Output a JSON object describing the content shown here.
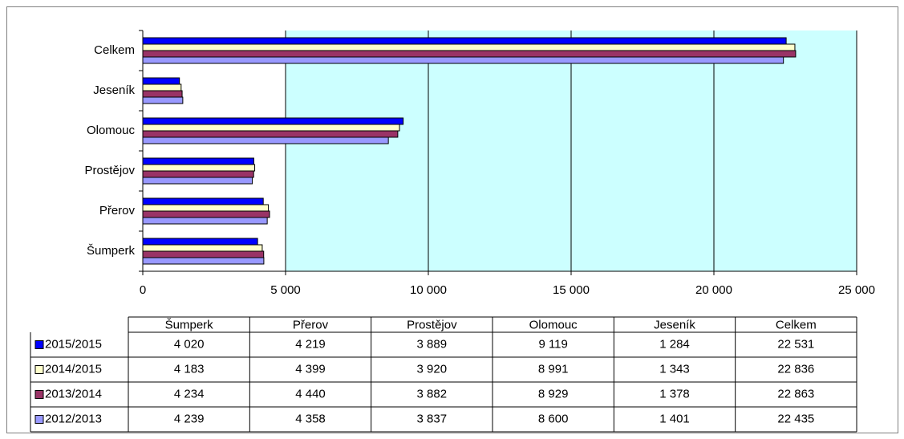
{
  "chart_data": {
    "type": "bar",
    "orientation": "horizontal",
    "categories": [
      "Šumperk",
      "Přerov",
      "Prostějov",
      "Olomouc",
      "Jeseník",
      "Celkem"
    ],
    "series": [
      {
        "name": "2015/2015",
        "color": "#0000ff",
        "values": [
          4020,
          4219,
          3889,
          9119,
          1284,
          22531
        ],
        "value_labels": [
          "4 020",
          "4 219",
          "3 889",
          "9 119",
          "1 284",
          "22 531"
        ]
      },
      {
        "name": "2014/2015",
        "color": "#ffffcc",
        "values": [
          4183,
          4399,
          3920,
          8991,
          1343,
          22836
        ],
        "value_labels": [
          "4 183",
          "4 399",
          "3 920",
          "8 991",
          "1 343",
          "22 836"
        ]
      },
      {
        "name": "2013/2014",
        "color": "#993366",
        "values": [
          4234,
          4440,
          3882,
          8929,
          1378,
          22863
        ],
        "value_labels": [
          "4 234",
          "4 440",
          "3 882",
          "8 929",
          "1 378",
          "22 863"
        ]
      },
      {
        "name": "2012/2013",
        "color": "#9999ff",
        "values": [
          4239,
          4358,
          3837,
          8600,
          1401,
          22435
        ],
        "value_labels": [
          "4 239",
          "4 358",
          "3 837",
          "8 600",
          "1 401",
          "22 435"
        ]
      }
    ],
    "xlim": [
      0,
      25000
    ],
    "xticks": [
      0,
      {
        "value": 5000,
        "label": "5 000"
      },
      {
        "value": 10000,
        "label": "10 000"
      },
      {
        "value": 15000,
        "label": "15 000"
      },
      {
        "value": 20000,
        "label": "20 000"
      },
      {
        "value": 25000,
        "label": "25 000"
      }
    ],
    "grid": true,
    "plot_color": "#ccffff",
    "data_table": true
  }
}
